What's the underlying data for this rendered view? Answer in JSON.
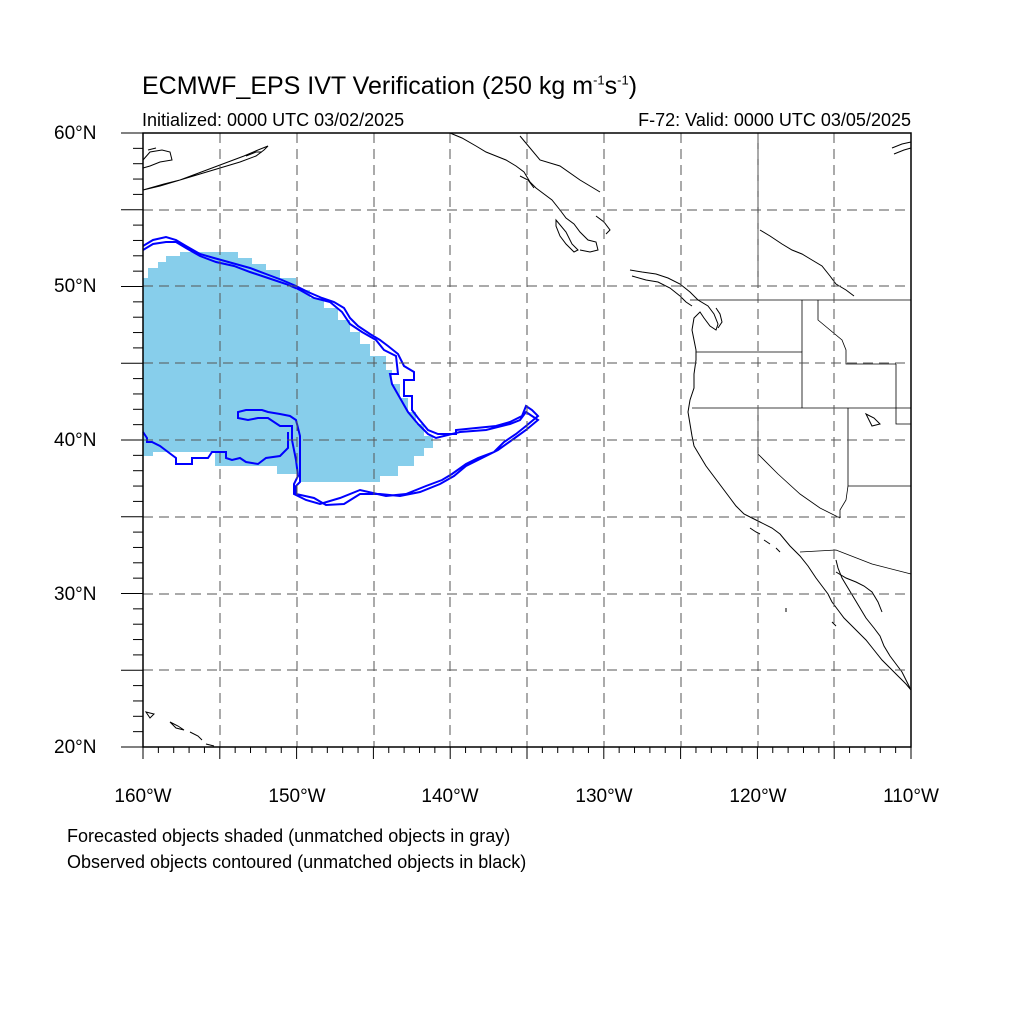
{
  "title": {
    "text_main": "ECMWF_EPS IVT Verification (250 kg m",
    "exp1": "-1",
    "text_mid": "s",
    "exp2": "-1",
    "text_end": ")"
  },
  "subtitle_left": "Initialized: 0000 UTC 03/02/2025",
  "subtitle_right": "F-72: Valid: 0000 UTC 03/05/2025",
  "axes": {
    "lat_labels": [
      "60°N",
      "50°N",
      "40°N",
      "30°N",
      "20°N"
    ],
    "lon_labels": [
      "160°W",
      "150°W",
      "140°W",
      "130°W",
      "120°W",
      "110°W"
    ]
  },
  "notes": [
    "Forecasted objects shaded (unmatched objects in gray)",
    "Observed objects contoured (unmatched objects in black)"
  ],
  "colors": {
    "forecast_fill": "#87ceeb",
    "observed_contour": "#0000ff",
    "grid": "#555555",
    "coast": "#000000"
  }
}
